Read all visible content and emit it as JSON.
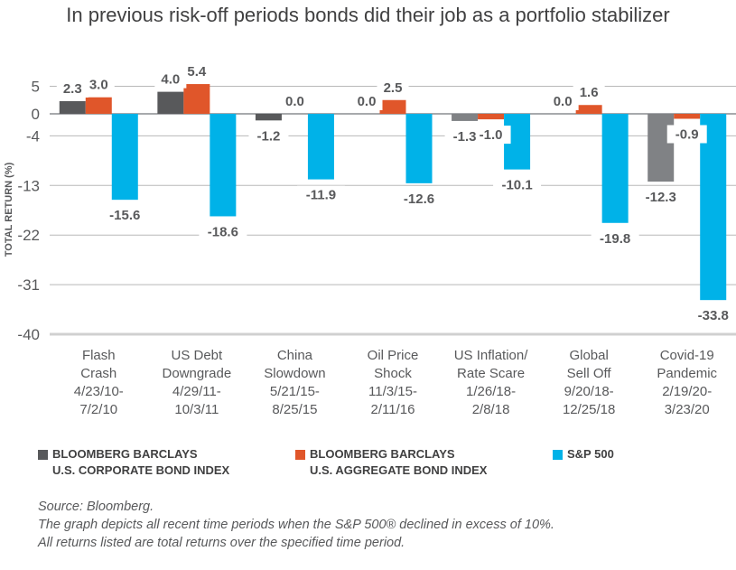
{
  "title": "In previous risk-off periods bonds did their job as a portfolio stabilizer",
  "chart_data": {
    "type": "bar",
    "title": "In previous risk-off periods bonds did their job as a portfolio stabilizer",
    "ylabel": "TOTAL RETURN (%)",
    "ylim": [
      -40,
      5
    ],
    "yticks": [
      5,
      0,
      -4,
      -13,
      -22,
      -31,
      -40
    ],
    "grid": true,
    "legend": "bottom",
    "categories": [
      [
        "Flash",
        "Crash",
        "4/23/10-",
        "7/2/10"
      ],
      [
        "US Debt",
        "Downgrade",
        "4/29/11-",
        "10/3/11"
      ],
      [
        "China",
        "Slowdown",
        "5/21/15-",
        "8/25/15"
      ],
      [
        "Oil Price",
        "Shock",
        "11/3/15-",
        "2/11/16"
      ],
      [
        "US Inflation/",
        "Rate Scare",
        "1/26/18-",
        "2/8/18"
      ],
      [
        "Global",
        "Sell Off",
        "9/20/18-",
        "12/25/18"
      ],
      [
        "Covid-19",
        "Pandemic",
        "2/19/20-",
        "3/23/20"
      ]
    ],
    "series": [
      {
        "name": "BLOOMBERG BARCLAYS U.S. CORPORATE BOND INDEX",
        "name_lines": [
          "BLOOMBERG BARCLAYS",
          "U.S. CORPORATE BOND INDEX"
        ],
        "color": "#58595b",
        "point_colors": [
          "#58595b",
          "#58595b",
          "#58595b",
          "#808285",
          "#808285",
          "#808285",
          "#808285"
        ],
        "values": [
          2.3,
          4.0,
          -1.2,
          0.0,
          -1.3,
          0.0,
          -12.3
        ]
      },
      {
        "name": "BLOOMBERG BARCLAYS U.S. AGGREGATE BOND INDEX",
        "name_lines": [
          "BLOOMBERG BARCLAYS",
          "U.S. AGGREGATE BOND INDEX"
        ],
        "color": "#e0562a",
        "values": [
          3.0,
          5.4,
          0.0,
          2.5,
          -1.0,
          1.6,
          -0.9
        ]
      },
      {
        "name": "S&P 500",
        "name_lines": [
          "S&P 500"
        ],
        "color": "#00b2e8",
        "values": [
          -15.6,
          -18.6,
          -11.9,
          -12.6,
          -10.1,
          -19.8,
          -33.8
        ]
      }
    ]
  },
  "source": [
    "Source: Bloomberg.",
    "The graph depicts all recent time periods when the S&P 500® declined in excess of 10%.",
    "All returns listed are total returns over the specified time period."
  ]
}
